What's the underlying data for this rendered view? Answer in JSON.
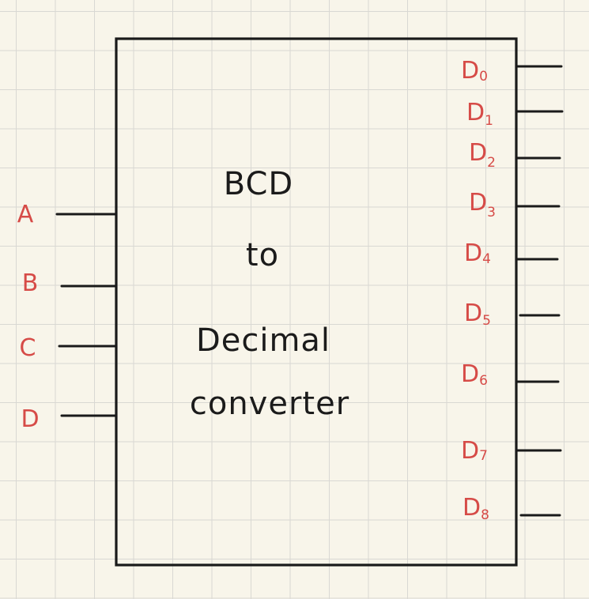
{
  "block": {
    "title_lines": [
      "BCD",
      "to",
      "Decimal",
      "converter"
    ]
  },
  "inputs": [
    {
      "label": "A"
    },
    {
      "label": "B"
    },
    {
      "label": "C"
    },
    {
      "label": "D"
    }
  ],
  "outputs": [
    {
      "base": "D",
      "sub": "0"
    },
    {
      "base": "D",
      "sub": "1"
    },
    {
      "base": "D",
      "sub": "2"
    },
    {
      "base": "D",
      "sub": "3"
    },
    {
      "base": "D",
      "sub": "4"
    },
    {
      "base": "D",
      "sub": "5"
    },
    {
      "base": "D",
      "sub": "6"
    },
    {
      "base": "D",
      "sub": "7"
    },
    {
      "base": "D",
      "sub": "8"
    }
  ],
  "colors": {
    "paper": "#f8f5ea",
    "grid": "#d9d8d3",
    "ink": "#1a1a1a",
    "label_red": "#d64b47"
  }
}
